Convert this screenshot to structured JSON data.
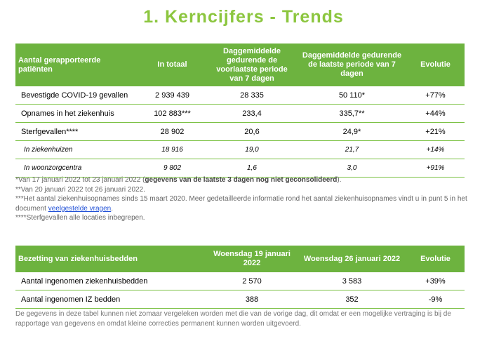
{
  "title": "1. Kerncijfers - Trends",
  "table1": {
    "headers": [
      "Aantal gerapporteerde patiënten",
      "In totaal",
      "Daggemiddelde gedurende de voorlaatste periode van 7 dagen",
      "Daggemiddelde gedurende de laatste periode van 7 dagen",
      "Evolutie"
    ],
    "rows": [
      {
        "label": "Bevestigde COVID-19 gevallen",
        "total": "2 939 439",
        "prev": "28 335",
        "last": "50 110*",
        "evo": "+77%"
      },
      {
        "label": "Opnames in het ziekenhuis",
        "total": "102 883***",
        "prev": "233,4",
        "last": "335,7**",
        "evo": "+44%"
      },
      {
        "label": "Sterfgevallen****",
        "total": "28 902",
        "prev": "20,6",
        "last": "24,9*",
        "evo": "+21%"
      },
      {
        "label": "In ziekenhuizen",
        "total": "18 916",
        "prev": "19,0",
        "last": "21,7",
        "evo": "+14%"
      },
      {
        "label": "In woonzorgcentra",
        "total": "9 802",
        "prev": "1,6",
        "last": "3,0",
        "evo": "+91%"
      }
    ]
  },
  "notes": {
    "n1_a": "*Van 17 januari 2022 tot 23 januari 2022 (",
    "n1_b": "gegevens van de laatste 3 dagen nog niet geconsolideerd",
    "n1_c": ").",
    "n2": "**Van 20 januari 2022 tot 26 januari 2022.",
    "n3_a": "***Het aantal ziekenhuisopnames sinds 15 maart 2020. Meer gedetailleerde informatie rond het aantal ziekenhuisopnames vindt u in punt 5 in het document ",
    "n3_link": "veelgestelde vragen",
    "n3_c": ".",
    "n4": "****Sterfgevallen alle locaties inbegrepen."
  },
  "table2": {
    "headers": [
      "Bezetting van ziekenhuisbedden",
      "Woensdag 19 januari 2022",
      "Woensdag 26 januari 2022",
      "Evolutie"
    ],
    "rows": [
      {
        "label": "Aantal ingenomen ziekenhuisbedden",
        "d1": "2 570",
        "d2": "3 583",
        "evo": "+39%"
      },
      {
        "label": "Aantal ingenomen IZ bedden",
        "d1": "388",
        "d2": "352",
        "evo": "-9%"
      }
    ]
  },
  "footer": "De gegevens in deze tabel kunnen niet zomaar vergeleken worden met die van de vorige dag, dit omdat er een mogelijke vertraging is bij de rapportage van gegevens en omdat kleine correcties permanent kunnen worden uitgevoerd."
}
